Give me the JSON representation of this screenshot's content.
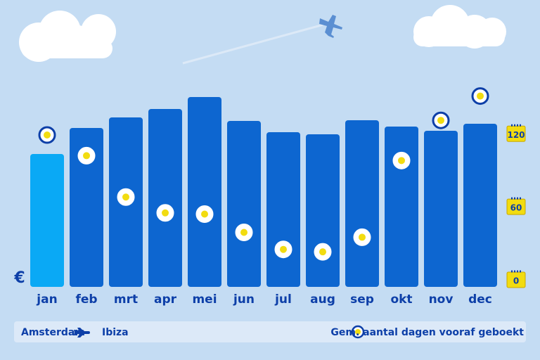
{
  "chart_data": {
    "type": "bar",
    "categories": [
      "jan",
      "feb",
      "mrt",
      "apr",
      "mei",
      "jun",
      "jul",
      "aug",
      "sep",
      "okt",
      "nov",
      "dec"
    ],
    "values": [
      189,
      226,
      241,
      253,
      270,
      236,
      220,
      217,
      237,
      228,
      222,
      232
    ],
    "colors": [
      "#0aa9f5",
      "#0d66d0",
      "#0d66d0",
      "#0d66d0",
      "#0d66d0",
      "#0d66d0",
      "#0d66d0",
      "#0d66d0",
      "#0d66d0",
      "#0d66d0",
      "#0d66d0",
      "#0d66d0"
    ],
    "value_axis_label": "€",
    "series": [
      {
        "name": "Gem. aantal dagen vooraf geboekt",
        "axis": "y2",
        "color": "#f2dc10",
        "values": [
          119,
          102,
          68,
          55,
          54,
          39,
          25,
          23,
          35,
          98,
          131,
          151
        ]
      }
    ],
    "y2lim": [
      0,
      160
    ],
    "y2ticks": [
      0,
      60,
      120
    ],
    "route": {
      "from": "Amsterdam",
      "to": "Ibiza"
    }
  }
}
